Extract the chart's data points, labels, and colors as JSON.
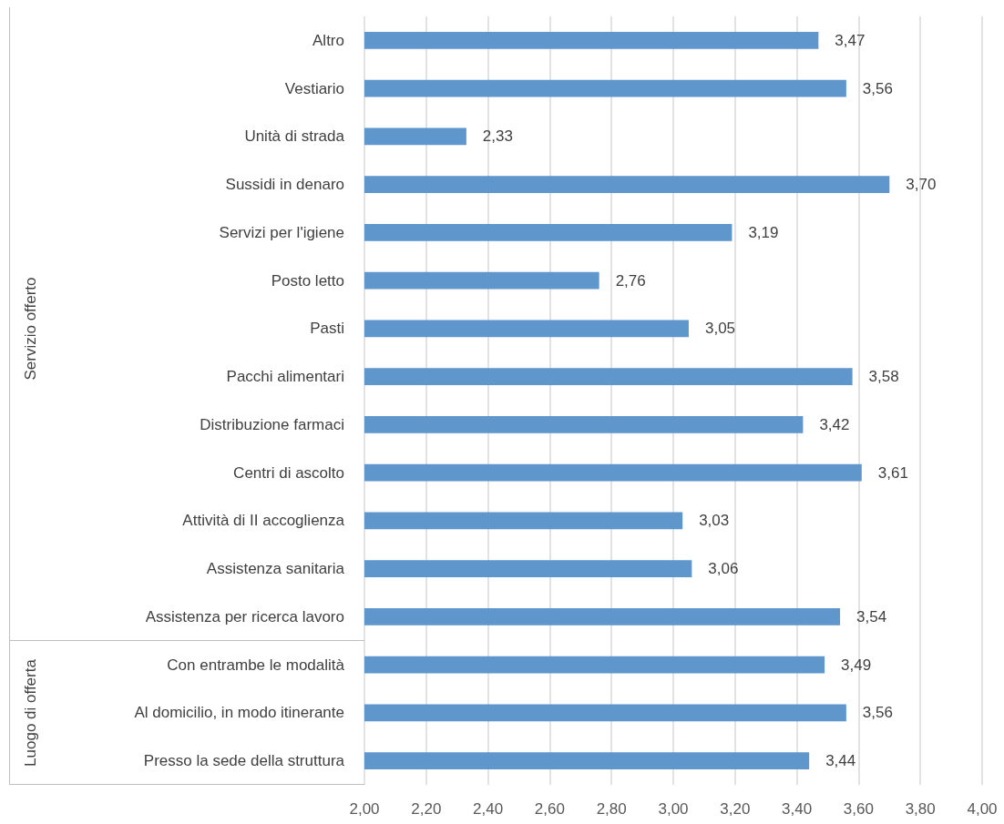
{
  "chart_data": {
    "type": "bar",
    "orientation": "horizontal",
    "categories": [
      "Altro",
      "Vestiario",
      "Unità di strada",
      "Sussidi in denaro",
      "Servizi per l'igiene",
      "Posto letto",
      "Pasti",
      "Pacchi alimentari",
      "Distribuzione farmaci",
      "Centri di ascolto",
      "Attività di II accoglienza",
      "Assistenza sanitaria",
      "Assistenza per ricerca lavoro",
      "Con entrambe le modalità",
      "Al domicilio, in modo itinerante",
      "Presso la sede della struttura"
    ],
    "values": [
      3.47,
      3.56,
      2.33,
      3.7,
      3.19,
      2.76,
      3.05,
      3.58,
      3.42,
      3.61,
      3.03,
      3.06,
      3.54,
      3.49,
      3.56,
      3.44
    ],
    "value_labels": [
      "3,47",
      "3,56",
      "2,33",
      "3,70",
      "3,19",
      "2,76",
      "3,05",
      "3,58",
      "3,42",
      "3,61",
      "3,03",
      "3,06",
      "3,54",
      "3,49",
      "3,56",
      "3,44"
    ],
    "color": "#5f96cb",
    "xlim": [
      2,
      4
    ],
    "xticks": [
      {
        "value": 2,
        "label": "2,00"
      },
      {
        "value": 2.2,
        "label": "2,20"
      },
      {
        "value": 2.4,
        "label": "2,40"
      },
      {
        "value": 2.6,
        "label": "2,60"
      },
      {
        "value": 2.8,
        "label": "2,80"
      },
      {
        "value": 3,
        "label": "3,00"
      },
      {
        "value": 3.2,
        "label": "3,20"
      },
      {
        "value": 3.4,
        "label": "3,40"
      },
      {
        "value": 3.6,
        "label": "3,60"
      },
      {
        "value": 3.8,
        "label": "3,80"
      },
      {
        "value": 4,
        "label": "4,00"
      }
    ],
    "grid": "x",
    "annotations": [
      "Servizio offerto",
      "Luogo di offerta"
    ]
  }
}
